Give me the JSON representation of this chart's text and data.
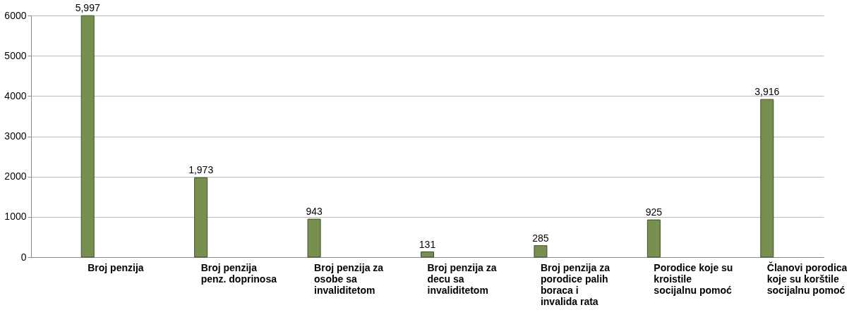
{
  "chart_data": {
    "type": "bar",
    "categories": [
      "Broj penzija",
      "Broj penzija penz. doprinosa",
      "Broj penzija za osobe sa invaliditetom",
      "Broj penzija za decu sa invaliditetom",
      "Broj penzija za porodice palih boraca i invalida rata",
      "Porodice koje su kroistile socijalnu pomoć",
      "Članovi porodica koje su korštile socijalnu pomoć"
    ],
    "values": [
      5997,
      1973,
      943,
      131,
      285,
      925,
      3916
    ],
    "color": "#77904f",
    "ylim": [
      0,
      6000
    ],
    "yticks": [
      0,
      1000,
      2000,
      3000,
      4000,
      5000,
      6000
    ],
    "value_labels": [
      "5,997",
      "1,973",
      "943",
      "131",
      "285",
      "925",
      "3,916"
    ],
    "grid": "y"
  }
}
